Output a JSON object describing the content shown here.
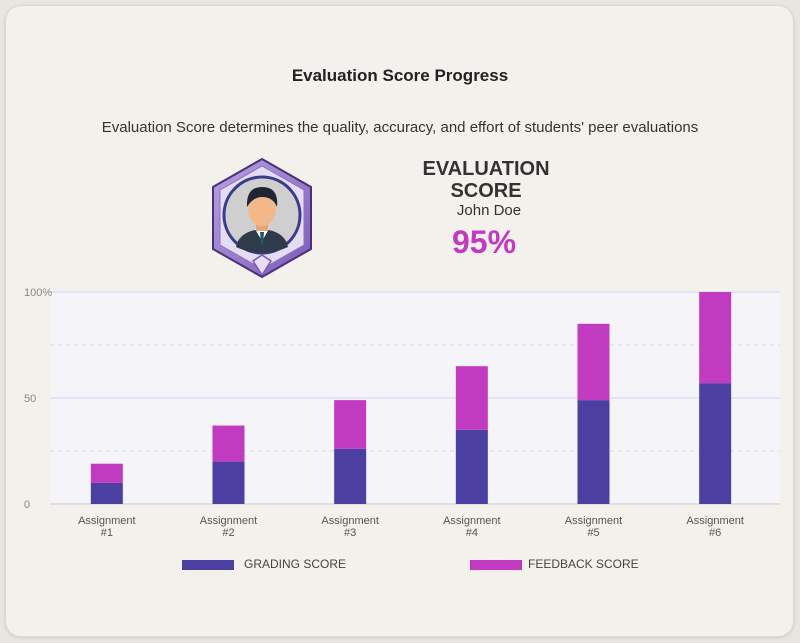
{
  "header": {
    "title": "Evaluation Score Progress",
    "subtitle": "Evaluation Score determines the quality, accuracy, and effort of students' peer evaluations"
  },
  "profile": {
    "score_label": "EVALUATION SCORE",
    "name": "John Doe",
    "score": "95%"
  },
  "colors": {
    "grading": "#4b40a2",
    "feedback": "#c03bc0",
    "accent": "#c03bc0"
  },
  "chart_data": {
    "type": "bar",
    "stacked": true,
    "categories": [
      [
        "Assignment",
        "#1"
      ],
      [
        "Assignment",
        "#2"
      ],
      [
        "Assignment",
        "#3"
      ],
      [
        "Assignment",
        "#4"
      ],
      [
        "Assignment",
        "#5"
      ],
      [
        "Assignment",
        "#6"
      ]
    ],
    "series": [
      {
        "name": "GRADING SCORE",
        "values": [
          10,
          20,
          26,
          35,
          49,
          57
        ]
      },
      {
        "name": "FEEDBACK SCORE",
        "values": [
          9,
          17,
          23,
          30,
          36,
          43
        ]
      }
    ],
    "ylim": [
      0,
      100
    ],
    "yticks": [
      0,
      50,
      100
    ],
    "ytick_labels": [
      "0",
      "50",
      "100%"
    ],
    "legend": "bottom",
    "grid": true
  }
}
